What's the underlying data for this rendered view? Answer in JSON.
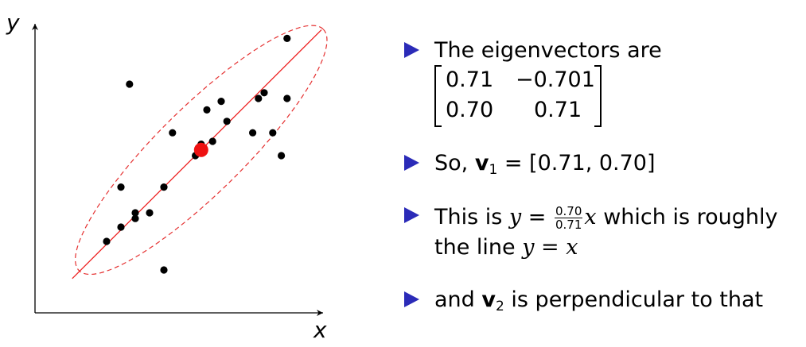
{
  "chart_data": {
    "type": "scatter",
    "xlabel": "x",
    "ylabel": "y",
    "grid": false,
    "xlim": [
      0,
      10
    ],
    "ylim": [
      0,
      10
    ],
    "points": [
      {
        "x": 3.3,
        "y": 8.0
      },
      {
        "x": 8.8,
        "y": 9.6
      },
      {
        "x": 8.0,
        "y": 7.7
      },
      {
        "x": 7.8,
        "y": 7.5
      },
      {
        "x": 8.8,
        "y": 7.5
      },
      {
        "x": 6.5,
        "y": 7.4
      },
      {
        "x": 6.0,
        "y": 7.1
      },
      {
        "x": 6.7,
        "y": 6.7
      },
      {
        "x": 4.8,
        "y": 6.3
      },
      {
        "x": 7.6,
        "y": 6.3
      },
      {
        "x": 8.3,
        "y": 6.3
      },
      {
        "x": 6.2,
        "y": 6.0
      },
      {
        "x": 5.8,
        "y": 5.9
      },
      {
        "x": 5.6,
        "y": 5.5
      },
      {
        "x": 8.6,
        "y": 5.5
      },
      {
        "x": 3.0,
        "y": 4.4
      },
      {
        "x": 4.5,
        "y": 4.4
      },
      {
        "x": 3.5,
        "y": 3.5
      },
      {
        "x": 4.0,
        "y": 3.5
      },
      {
        "x": 3.5,
        "y": 3.3
      },
      {
        "x": 3.0,
        "y": 3.0
      },
      {
        "x": 2.5,
        "y": 2.5
      },
      {
        "x": 4.5,
        "y": 1.5
      }
    ],
    "mean_point": {
      "x": 5.8,
      "y": 5.7
    },
    "fit_line": {
      "x": [
        1.3,
        10.0
      ],
      "y": [
        1.2,
        9.9
      ]
    },
    "ellipse": {
      "center": [
        5.8,
        5.7
      ],
      "angle_deg": 44.7,
      "semi_major": 6.0,
      "semi_minor": 1.5
    }
  },
  "bullets": {
    "item1": {
      "text": "The eigenvectors are"
    },
    "matrix": {
      "r1c1": "0.71",
      "r1c2": "−0.701",
      "r2c1": "0.70",
      "r2c2": "0.71"
    },
    "item2": {
      "lead": "So, ",
      "vec": "v",
      "sub": "1",
      "eq": " = [0.71, 0.70]"
    },
    "item3": {
      "lead": "This is ",
      "y": "y",
      "eq": " = ",
      "num": "0.70",
      "den": "0.71",
      "x": "x",
      "tail": " which is roughly",
      "line2": "the line ",
      "eq2": "y = x"
    },
    "item4": {
      "lead": "and ",
      "vec": "v",
      "sub": "2",
      "tail": " is perpendicular to that"
    }
  }
}
